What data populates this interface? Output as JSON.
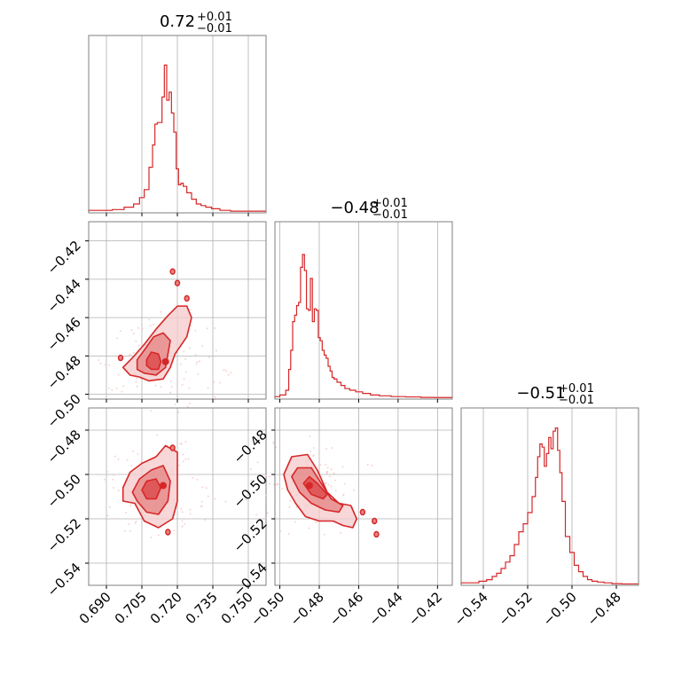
{
  "colors": {
    "main": "#d62728",
    "fill_inner": "#e58283",
    "fill_outer": "#f4c9c9",
    "grid": "#b0b0b0",
    "frame": "#7f7f7f"
  },
  "titles": [
    {
      "base": "0.72",
      "sup": "+0.01",
      "sub": "−0.01"
    },
    {
      "base": "−0.48",
      "sup": "+0.01",
      "sub": "−0.01"
    },
    {
      "base": "−0.51",
      "sup": "+0.01",
      "sub": "−0.01"
    }
  ],
  "chart_data": [
    {
      "type": "histogram",
      "panel": "p0-marginal",
      "grid": true,
      "xlim": [
        0.6825,
        0.7575
      ],
      "x": [
        0.69,
        0.695,
        0.7,
        0.703,
        0.705,
        0.707,
        0.709,
        0.71,
        0.711,
        0.712,
        0.713,
        0.714,
        0.715,
        0.716,
        0.717,
        0.718,
        0.719,
        0.72,
        0.721,
        0.722,
        0.723,
        0.725,
        0.727,
        0.729,
        0.731,
        0.733,
        0.736,
        0.74,
        0.745
      ],
      "values": [
        0.01,
        0.015,
        0.03,
        0.05,
        0.09,
        0.14,
        0.28,
        0.42,
        0.55,
        0.56,
        0.56,
        0.72,
        0.92,
        0.7,
        0.75,
        0.62,
        0.5,
        0.27,
        0.17,
        0.18,
        0.16,
        0.12,
        0.08,
        0.05,
        0.04,
        0.03,
        0.02,
        0.01,
        0.005
      ]
    },
    {
      "type": "histogram",
      "panel": "p1-marginal",
      "grid": true,
      "xlim": [
        -0.5025,
        -0.4125
      ],
      "x": [
        -0.502,
        -0.498,
        -0.496,
        -0.495,
        -0.494,
        -0.493,
        -0.492,
        -0.491,
        -0.49,
        -0.489,
        -0.488,
        -0.487,
        -0.486,
        -0.485,
        -0.484,
        -0.483,
        -0.482,
        -0.481,
        -0.48,
        -0.479,
        -0.478,
        -0.477,
        -0.476,
        -0.475,
        -0.474,
        -0.473,
        -0.472,
        -0.47,
        -0.468,
        -0.466,
        -0.463,
        -0.46,
        -0.456,
        -0.452,
        -0.447,
        -0.44,
        -0.432,
        -0.425,
        -0.418
      ],
      "values": [
        0.01,
        0.02,
        0.05,
        0.18,
        0.3,
        0.48,
        0.52,
        0.58,
        0.6,
        0.82,
        0.9,
        0.8,
        0.56,
        0.55,
        0.75,
        0.48,
        0.56,
        0.55,
        0.38,
        0.36,
        0.3,
        0.27,
        0.25,
        0.2,
        0.17,
        0.13,
        0.12,
        0.1,
        0.08,
        0.06,
        0.05,
        0.04,
        0.03,
        0.02,
        0.015,
        0.01,
        0.008,
        0.005,
        0.004
      ]
    },
    {
      "type": "histogram",
      "panel": "p2-marginal",
      "grid": true,
      "xlim": [
        -0.55,
        -0.47
      ],
      "x": [
        -0.549,
        -0.544,
        -0.54,
        -0.537,
        -0.535,
        -0.533,
        -0.531,
        -0.529,
        -0.527,
        -0.525,
        -0.523,
        -0.521,
        -0.519,
        -0.517,
        -0.516,
        -0.515,
        -0.514,
        -0.513,
        -0.512,
        -0.511,
        -0.51,
        -0.509,
        -0.508,
        -0.507,
        -0.506,
        -0.505,
        -0.504,
        -0.502,
        -0.5,
        -0.498,
        -0.496,
        -0.494,
        -0.492,
        -0.49,
        -0.487,
        -0.484,
        -0.48,
        -0.475
      ],
      "values": [
        0.01,
        0.01,
        0.02,
        0.03,
        0.05,
        0.07,
        0.1,
        0.14,
        0.18,
        0.25,
        0.33,
        0.38,
        0.45,
        0.55,
        0.67,
        0.8,
        0.88,
        0.86,
        0.74,
        0.82,
        0.92,
        0.85,
        0.96,
        0.98,
        0.84,
        0.7,
        0.52,
        0.3,
        0.2,
        0.12,
        0.08,
        0.05,
        0.03,
        0.02,
        0.015,
        0.01,
        0.005,
        0.003
      ]
    },
    {
      "type": "contour",
      "panel": "p10-2d",
      "grid": true,
      "xlim": [
        0.6825,
        0.7575
      ],
      "ylim": [
        -0.5025,
        -0.41
      ],
      "levels": [
        {
          "fill": "outer",
          "points": [
            [
              0.704,
              -0.491
            ],
            [
              0.708,
              -0.493
            ],
            [
              0.714,
              -0.492
            ],
            [
              0.717,
              -0.486
            ],
            [
              0.719,
              -0.479
            ],
            [
              0.724,
              -0.47
            ],
            [
              0.726,
              -0.46
            ],
            [
              0.724,
              -0.454
            ],
            [
              0.72,
              -0.454
            ],
            [
              0.716,
              -0.459
            ],
            [
              0.711,
              -0.466
            ],
            [
              0.706,
              -0.474
            ],
            [
              0.701,
              -0.481
            ],
            [
              0.697,
              -0.486
            ],
            [
              0.7,
              -0.49
            ]
          ]
        },
        {
          "fill": "mid",
          "points": [
            [
              0.706,
              -0.489
            ],
            [
              0.711,
              -0.49
            ],
            [
              0.715,
              -0.486
            ],
            [
              0.716,
              -0.479
            ],
            [
              0.717,
              -0.472
            ],
            [
              0.714,
              -0.468
            ],
            [
              0.71,
              -0.47
            ],
            [
              0.706,
              -0.477
            ],
            [
              0.703,
              -0.482
            ],
            [
              0.703,
              -0.487
            ]
          ]
        },
        {
          "fill": "inner",
          "points": [
            [
              0.709,
              -0.487
            ],
            [
              0.712,
              -0.487
            ],
            [
              0.713,
              -0.483
            ],
            [
              0.712,
              -0.479
            ],
            [
              0.709,
              -0.478
            ],
            [
              0.707,
              -0.482
            ],
            [
              0.707,
              -0.485
            ]
          ]
        }
      ],
      "islands": [
        [
          0.718,
          -0.436
        ],
        [
          0.72,
          -0.442
        ],
        [
          0.724,
          -0.45
        ],
        [
          0.696,
          -0.481
        ]
      ],
      "center": [
        0.715,
        -0.483
      ]
    },
    {
      "type": "contour",
      "panel": "p20-2d",
      "grid": true,
      "xlim": [
        0.6825,
        0.7575
      ],
      "ylim": [
        -0.55,
        -0.47
      ],
      "levels": [
        {
          "fill": "outer",
          "points": [
            [
              0.702,
              -0.513
            ],
            [
              0.706,
              -0.521
            ],
            [
              0.712,
              -0.524
            ],
            [
              0.718,
              -0.52
            ],
            [
              0.72,
              -0.512
            ],
            [
              0.72,
              -0.5
            ],
            [
              0.72,
              -0.49
            ],
            [
              0.715,
              -0.487
            ],
            [
              0.711,
              -0.492
            ],
            [
              0.705,
              -0.495
            ],
            [
              0.7,
              -0.499
            ],
            [
              0.697,
              -0.506
            ],
            [
              0.697,
              -0.512
            ]
          ]
        },
        {
          "fill": "mid",
          "points": [
            [
              0.703,
              -0.512
            ],
            [
              0.707,
              -0.517
            ],
            [
              0.712,
              -0.518
            ],
            [
              0.716,
              -0.512
            ],
            [
              0.717,
              -0.503
            ],
            [
              0.714,
              -0.496
            ],
            [
              0.709,
              -0.498
            ],
            [
              0.704,
              -0.502
            ],
            [
              0.701,
              -0.508
            ]
          ]
        },
        {
          "fill": "inner",
          "points": [
            [
              0.707,
              -0.511
            ],
            [
              0.711,
              -0.511
            ],
            [
              0.713,
              -0.506
            ],
            [
              0.711,
              -0.502
            ],
            [
              0.707,
              -0.503
            ],
            [
              0.705,
              -0.507
            ]
          ]
        }
      ],
      "islands": [
        [
          0.716,
          -0.526
        ],
        [
          0.718,
          -0.488
        ]
      ],
      "center": [
        0.714,
        -0.505
      ]
    },
    {
      "type": "contour",
      "panel": "p21-2d",
      "grid": true,
      "xlim": [
        -0.5025,
        -0.4125
      ],
      "ylim": [
        -0.55,
        -0.47
      ],
      "levels": [
        {
          "fill": "outer",
          "points": [
            [
              -0.498,
              -0.5
            ],
            [
              -0.496,
              -0.507
            ],
            [
              -0.492,
              -0.513
            ],
            [
              -0.487,
              -0.519
            ],
            [
              -0.48,
              -0.521
            ],
            [
              -0.473,
              -0.521
            ],
            [
              -0.468,
              -0.523
            ],
            [
              -0.463,
              -0.524
            ],
            [
              -0.461,
              -0.52
            ],
            [
              -0.464,
              -0.514
            ],
            [
              -0.47,
              -0.513
            ],
            [
              -0.476,
              -0.508
            ],
            [
              -0.481,
              -0.498
            ],
            [
              -0.486,
              -0.491
            ],
            [
              -0.494,
              -0.492
            ]
          ]
        },
        {
          "fill": "mid",
          "points": [
            [
              -0.494,
              -0.501
            ],
            [
              -0.49,
              -0.508
            ],
            [
              -0.484,
              -0.513
            ],
            [
              -0.477,
              -0.516
            ],
            [
              -0.47,
              -0.517
            ],
            [
              -0.468,
              -0.514
            ],
            [
              -0.474,
              -0.511
            ],
            [
              -0.479,
              -0.504
            ],
            [
              -0.484,
              -0.497
            ],
            [
              -0.491,
              -0.497
            ]
          ]
        },
        {
          "fill": "inner",
          "points": [
            [
              -0.488,
              -0.504
            ],
            [
              -0.484,
              -0.509
            ],
            [
              -0.478,
              -0.511
            ],
            [
              -0.476,
              -0.509
            ],
            [
              -0.481,
              -0.504
            ],
            [
              -0.485,
              -0.501
            ]
          ]
        }
      ],
      "islands": [
        [
          -0.458,
          -0.517
        ],
        [
          -0.452,
          -0.521
        ],
        [
          -0.451,
          -0.527
        ]
      ],
      "center": [
        -0.485,
        -0.505
      ]
    }
  ],
  "ticks": {
    "x0": [
      "0.690",
      "0.705",
      "0.720",
      "0.735",
      "0.750"
    ],
    "x0_vals": [
      0.69,
      0.705,
      0.72,
      0.735,
      0.75
    ],
    "x1": [
      "−0.50",
      "−0.48",
      "−0.46",
      "−0.44",
      "−0.42"
    ],
    "x1_vals": [
      -0.5,
      -0.48,
      -0.46,
      -0.44,
      -0.42
    ],
    "x2": [
      "−0.54",
      "−0.52",
      "−0.50",
      "−0.48"
    ],
    "x2_vals": [
      -0.54,
      -0.52,
      -0.5,
      -0.48
    ],
    "y1": [
      "−0.42",
      "−0.44",
      "−0.46",
      "−0.48",
      "−0.50"
    ],
    "y1_vals": [
      -0.42,
      -0.44,
      -0.46,
      -0.48,
      -0.5
    ],
    "y2": [
      "−0.48",
      "−0.50",
      "−0.52",
      "−0.54"
    ],
    "y2_vals": [
      -0.48,
      -0.5,
      -0.52,
      -0.54
    ]
  }
}
